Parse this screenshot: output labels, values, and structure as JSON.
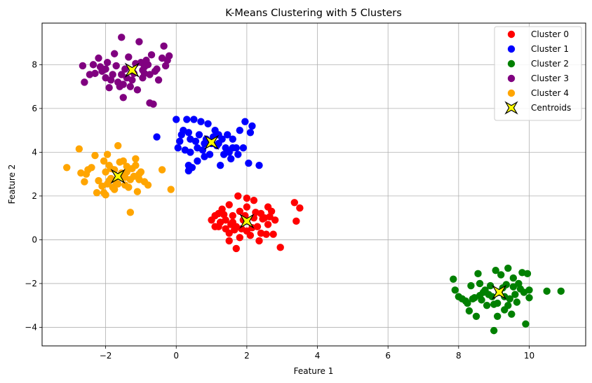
{
  "chart_data": {
    "type": "scatter",
    "title": "K-Means Clustering with 5 Clusters",
    "xlabel": "Feature 1",
    "ylabel": "Feature 2",
    "xlim": [
      -3.8,
      11.6
    ],
    "ylim": [
      -4.85,
      9.9
    ],
    "xticks": [
      -2,
      0,
      2,
      4,
      6,
      8,
      10
    ],
    "yticks": [
      -4,
      -2,
      0,
      2,
      4,
      6,
      8
    ],
    "grid": true,
    "legend_position": "top-right",
    "series": [
      {
        "name": "Cluster 0",
        "color": "#ff0000",
        "points": [
          [
            1.2,
            0.6
          ],
          [
            1.4,
            0.9
          ],
          [
            1.6,
            1.1
          ],
          [
            1.8,
            1.3
          ],
          [
            2.0,
            0.4
          ],
          [
            2.2,
            1.0
          ],
          [
            2.4,
            1.2
          ],
          [
            2.6,
            0.7
          ],
          [
            1.1,
            1.1
          ],
          [
            1.3,
            1.4
          ],
          [
            1.5,
            0.3
          ],
          [
            1.7,
            0.6
          ],
          [
            1.9,
            0.9
          ],
          [
            2.1,
            0.2
          ],
          [
            2.3,
            0.6
          ],
          [
            2.5,
            1.0
          ],
          [
            2.7,
            1.3
          ],
          [
            1.0,
            0.9
          ],
          [
            1.2,
            1.2
          ],
          [
            1.4,
            0.5
          ],
          [
            1.6,
            0.8
          ],
          [
            1.8,
            0.1
          ],
          [
            2.0,
            1.5
          ],
          [
            2.2,
            1.8
          ],
          [
            2.4,
            0.3
          ],
          [
            2.6,
            1.5
          ],
          [
            2.8,
            0.9
          ],
          [
            1.5,
            -0.05
          ],
          [
            1.7,
            -0.4
          ],
          [
            2.0,
            1.9
          ],
          [
            2.35,
            -0.05
          ],
          [
            2.95,
            -0.35
          ],
          [
            3.35,
            1.7
          ],
          [
            3.4,
            0.85
          ],
          [
            3.5,
            1.45
          ],
          [
            1.75,
            2.0
          ],
          [
            2.55,
            0.25
          ],
          [
            1.1,
            0.6
          ],
          [
            1.35,
            1.15
          ],
          [
            1.85,
            0.5
          ],
          [
            2.15,
            0.55
          ],
          [
            2.45,
            0.95
          ],
          [
            2.75,
            0.25
          ],
          [
            1.95,
            1.1
          ],
          [
            1.65,
            0.45
          ],
          [
            1.5,
            1.6
          ],
          [
            2.25,
            1.25
          ],
          [
            1.25,
            0.8
          ],
          [
            2.65,
            1.05
          ],
          [
            1.55,
            0.7
          ]
        ]
      },
      {
        "name": "Cluster 1",
        "color": "#0000ff",
        "points": [
          [
            0.0,
            5.5
          ],
          [
            0.2,
            5.0
          ],
          [
            0.4,
            4.6
          ],
          [
            0.6,
            4.2
          ],
          [
            0.8,
            3.8
          ],
          [
            1.0,
            4.4
          ],
          [
            1.2,
            4.8
          ],
          [
            1.4,
            4.2
          ],
          [
            1.6,
            4.6
          ],
          [
            1.8,
            5.0
          ],
          [
            -0.55,
            4.7
          ],
          [
            0.3,
            5.5
          ],
          [
            0.5,
            5.5
          ],
          [
            0.7,
            5.4
          ],
          [
            0.9,
            5.3
          ],
          [
            1.1,
            5.0
          ],
          [
            1.3,
            4.6
          ],
          [
            1.5,
            4.0
          ],
          [
            1.7,
            4.2
          ],
          [
            1.9,
            4.2
          ],
          [
            0.1,
            4.5
          ],
          [
            0.35,
            4.9
          ],
          [
            0.55,
            4.5
          ],
          [
            0.75,
            4.1
          ],
          [
            0.95,
            3.9
          ],
          [
            1.15,
            4.3
          ],
          [
            1.35,
            3.9
          ],
          [
            1.55,
            3.7
          ],
          [
            1.75,
            3.9
          ],
          [
            2.1,
            4.9
          ],
          [
            2.15,
            5.2
          ],
          [
            2.05,
            3.5
          ],
          [
            2.35,
            3.4
          ],
          [
            0.35,
            3.15
          ],
          [
            0.45,
            3.3
          ],
          [
            0.35,
            3.4
          ],
          [
            1.25,
            3.4
          ],
          [
            0.05,
            4.2
          ],
          [
            1.95,
            5.4
          ],
          [
            0.85,
            4.6
          ],
          [
            1.05,
            4.7
          ],
          [
            0.6,
            3.6
          ],
          [
            0.8,
            4.4
          ],
          [
            1.2,
            4.4
          ],
          [
            0.25,
            4.1
          ],
          [
            1.45,
            4.8
          ],
          [
            0.65,
            4.8
          ],
          [
            0.4,
            4.0
          ],
          [
            1.6,
            4.2
          ],
          [
            0.15,
            4.8
          ]
        ]
      },
      {
        "name": "Cluster 2",
        "color": "#008000",
        "points": [
          [
            7.85,
            -1.8
          ],
          [
            7.9,
            -2.3
          ],
          [
            8.0,
            -2.6
          ],
          [
            8.2,
            -2.8
          ],
          [
            8.3,
            -3.25
          ],
          [
            8.4,
            -2.7
          ],
          [
            8.5,
            -3.5
          ],
          [
            8.55,
            -1.55
          ],
          [
            8.6,
            -2.0
          ],
          [
            8.7,
            -2.4
          ],
          [
            8.8,
            -3.0
          ],
          [
            8.9,
            -2.1
          ],
          [
            8.95,
            -2.6
          ],
          [
            9.0,
            -4.15
          ],
          [
            9.05,
            -1.4
          ],
          [
            9.1,
            -2.9
          ],
          [
            9.2,
            -1.6
          ],
          [
            9.25,
            -2.2
          ],
          [
            9.3,
            -3.2
          ],
          [
            9.4,
            -1.3
          ],
          [
            9.45,
            -2.7
          ],
          [
            9.5,
            -3.4
          ],
          [
            9.55,
            -1.75
          ],
          [
            9.6,
            -2.5
          ],
          [
            9.7,
            -2.0
          ],
          [
            9.8,
            -1.5
          ],
          [
            9.85,
            -2.4
          ],
          [
            9.9,
            -3.85
          ],
          [
            9.95,
            -1.55
          ],
          [
            10.0,
            -2.3
          ],
          [
            10.0,
            -2.65
          ],
          [
            10.5,
            -2.35
          ],
          [
            10.9,
            -2.35
          ],
          [
            8.1,
            -2.7
          ],
          [
            8.35,
            -2.1
          ],
          [
            8.65,
            -2.75
          ],
          [
            8.75,
            -2.3
          ],
          [
            9.15,
            -2.4
          ],
          [
            9.35,
            -2.05
          ],
          [
            9.65,
            -2.85
          ],
          [
            9.75,
            -2.25
          ],
          [
            8.85,
            -2.5
          ],
          [
            9.0,
            -2.95
          ],
          [
            9.3,
            -2.6
          ],
          [
            8.45,
            -2.65
          ],
          [
            9.55,
            -2.15
          ],
          [
            8.25,
            -2.9
          ],
          [
            9.1,
            -3.5
          ],
          [
            8.6,
            -2.55
          ],
          [
            9.4,
            -3.0
          ]
        ]
      },
      {
        "name": "Cluster 3",
        "color": "#800080",
        "points": [
          [
            -2.65,
            7.95
          ],
          [
            -2.6,
            7.2
          ],
          [
            -2.45,
            7.55
          ],
          [
            -2.35,
            8.0
          ],
          [
            -2.2,
            8.3
          ],
          [
            -2.1,
            7.7
          ],
          [
            -2.0,
            7.4
          ],
          [
            -1.95,
            8.1
          ],
          [
            -1.9,
            6.95
          ],
          [
            -1.8,
            7.55
          ],
          [
            -1.75,
            8.5
          ],
          [
            -1.65,
            7.2
          ],
          [
            -1.55,
            9.25
          ],
          [
            -1.5,
            6.5
          ],
          [
            -1.45,
            7.8
          ],
          [
            -1.35,
            8.35
          ],
          [
            -1.3,
            7.0
          ],
          [
            -1.2,
            7.6
          ],
          [
            -1.15,
            8.05
          ],
          [
            -1.1,
            6.85
          ],
          [
            -1.05,
            9.05
          ],
          [
            -0.95,
            7.4
          ],
          [
            -0.9,
            7.9
          ],
          [
            -0.85,
            8.2
          ],
          [
            -0.75,
            7.55
          ],
          [
            -0.7,
            8.45
          ],
          [
            -0.65,
            6.2
          ],
          [
            -0.55,
            7.8
          ],
          [
            -0.5,
            7.3
          ],
          [
            -0.4,
            8.3
          ],
          [
            -0.35,
            8.85
          ],
          [
            -0.3,
            7.95
          ],
          [
            -0.25,
            8.2
          ],
          [
            -0.2,
            8.4
          ],
          [
            -2.3,
            7.6
          ],
          [
            -1.6,
            7.0
          ],
          [
            -1.25,
            7.3
          ],
          [
            -0.95,
            7.75
          ],
          [
            -0.8,
            8.0
          ],
          [
            -1.4,
            7.4
          ],
          [
            -2.0,
            7.8
          ],
          [
            -1.7,
            7.95
          ],
          [
            -0.6,
            7.7
          ],
          [
            -1.85,
            7.3
          ],
          [
            -1.55,
            7.55
          ],
          [
            -0.75,
            6.25
          ],
          [
            -1.0,
            8.1
          ],
          [
            -2.15,
            7.9
          ],
          [
            -1.5,
            7.1
          ],
          [
            -0.9,
            7.6
          ]
        ]
      },
      {
        "name": "Cluster 4",
        "color": "#ffa500",
        "points": [
          [
            -3.1,
            3.3
          ],
          [
            -2.75,
            4.15
          ],
          [
            -2.7,
            3.05
          ],
          [
            -2.6,
            2.65
          ],
          [
            -2.5,
            3.2
          ],
          [
            -2.4,
            3.3
          ],
          [
            -2.3,
            3.85
          ],
          [
            -2.25,
            2.15
          ],
          [
            -2.2,
            2.7
          ],
          [
            -2.1,
            2.45
          ],
          [
            -2.05,
            3.6
          ],
          [
            -2.0,
            2.05
          ],
          [
            -1.95,
            3.9
          ],
          [
            -1.9,
            3.4
          ],
          [
            -1.85,
            2.8
          ],
          [
            -1.8,
            2.4
          ],
          [
            -1.75,
            3.2
          ],
          [
            -1.7,
            2.6
          ],
          [
            -1.65,
            4.3
          ],
          [
            -1.6,
            2.9
          ],
          [
            -1.5,
            3.6
          ],
          [
            -1.45,
            2.5
          ],
          [
            -1.4,
            3.1
          ],
          [
            -1.35,
            2.4
          ],
          [
            -1.3,
            1.25
          ],
          [
            -1.2,
            2.9
          ],
          [
            -1.15,
            3.4
          ],
          [
            -1.1,
            2.2
          ],
          [
            -1.05,
            2.75
          ],
          [
            -1.0,
            3.1
          ],
          [
            -0.9,
            2.65
          ],
          [
            -0.8,
            2.5
          ],
          [
            -0.4,
            3.2
          ],
          [
            -0.15,
            2.3
          ],
          [
            -1.6,
            3.55
          ],
          [
            -1.75,
            2.3
          ],
          [
            -1.9,
            2.7
          ],
          [
            -2.05,
            2.15
          ],
          [
            -1.3,
            2.75
          ],
          [
            -1.55,
            3.05
          ],
          [
            -2.0,
            3.1
          ],
          [
            -1.25,
            3.25
          ],
          [
            -1.45,
            2.85
          ],
          [
            -1.15,
            3.7
          ],
          [
            -1.65,
            2.55
          ],
          [
            -1.85,
            3.25
          ],
          [
            -1.05,
            3.0
          ],
          [
            -2.55,
            3.0
          ],
          [
            -1.95,
            2.55
          ],
          [
            -1.4,
            3.35
          ]
        ]
      }
    ],
    "centroids": {
      "name": "Centroids",
      "color": "#ffff00",
      "points": [
        [
          2.0,
          0.85
        ],
        [
          1.0,
          4.45
        ],
        [
          9.15,
          -2.4
        ],
        [
          -1.25,
          7.75
        ],
        [
          -1.65,
          2.9
        ]
      ]
    }
  }
}
